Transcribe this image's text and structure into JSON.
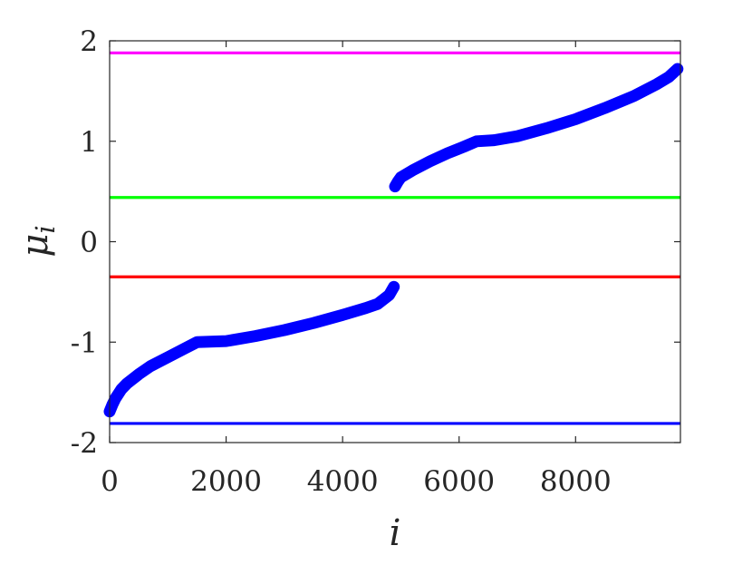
{
  "chart_data": {
    "type": "line",
    "title": "",
    "xlabel": "i",
    "ylabel": "μ",
    "ylabel_subscript": "i",
    "xlim": [
      0,
      9800
    ],
    "ylim": [
      -2,
      2
    ],
    "x_ticks": [
      0,
      2000,
      4000,
      6000,
      8000
    ],
    "y_ticks": [
      -2,
      -1,
      0,
      1,
      2
    ],
    "x_tick_labels": [
      "0",
      "2000",
      "4000",
      "6000",
      "8000"
    ],
    "y_tick_labels": [
      "-2",
      "-1",
      "0",
      "1",
      "2"
    ],
    "grid": false,
    "legend": "none",
    "reference_lines": [
      {
        "y": 1.88,
        "color": "#ff00ff"
      },
      {
        "y": 0.44,
        "color": "#00ff00"
      },
      {
        "y": -0.35,
        "color": "#ff0000"
      },
      {
        "y": -1.81,
        "color": "#0000ff"
      }
    ],
    "series": [
      {
        "color": "#0000ff",
        "marker": "*",
        "segments": [
          {
            "x": [
              0,
              50,
              100,
              200,
              300,
              500,
              700,
              1000,
              1300,
              1500,
              2000,
              2500,
              3000,
              3500,
              4000,
              4400,
              4600,
              4800,
              4880
            ],
            "y": [
              -1.69,
              -1.62,
              -1.56,
              -1.47,
              -1.41,
              -1.32,
              -1.24,
              -1.15,
              -1.06,
              -1.0,
              -0.99,
              -0.94,
              -0.88,
              -0.81,
              -0.73,
              -0.66,
              -0.62,
              -0.53,
              -0.45
            ]
          },
          {
            "x": [
              4900,
              4950,
              5000,
              5200,
              5500,
              5800,
              6100,
              6300,
              6600,
              7000,
              7500,
              8000,
              8500,
              9000,
              9400,
              9600,
              9750
            ],
            "y": [
              0.55,
              0.6,
              0.64,
              0.71,
              0.8,
              0.88,
              0.95,
              1.0,
              1.01,
              1.05,
              1.13,
              1.22,
              1.33,
              1.45,
              1.57,
              1.64,
              1.72
            ]
          }
        ]
      }
    ]
  }
}
